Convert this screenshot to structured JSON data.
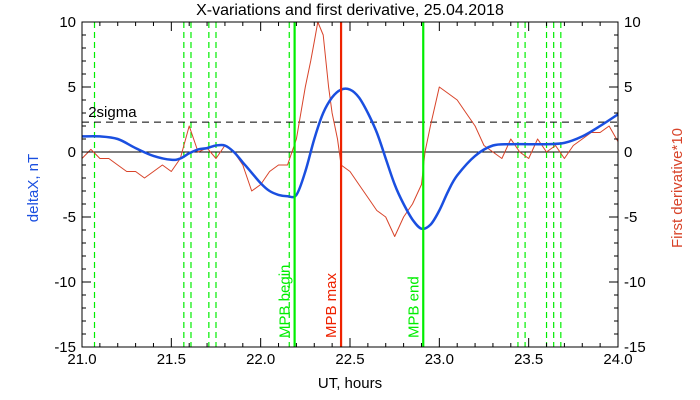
{
  "chart_data": {
    "type": "line",
    "title": "X-variations and first derivative, 25.04.2018",
    "xlabel": "UT, hours",
    "ylabel_left": "deltaX, nT",
    "ylabel_right": "First derivative*10",
    "xlim": [
      21.0,
      24.0
    ],
    "ylim": [
      -15,
      10
    ],
    "ylim_right": [
      -15,
      10
    ],
    "x_ticks": [
      21.0,
      21.5,
      22.0,
      22.5,
      23.0,
      23.5,
      24.0
    ],
    "x_tick_labels": [
      "21.0",
      "21.5",
      "22.0",
      "22.5",
      "23.0",
      "23.5",
      "24.0"
    ],
    "y_ticks": [
      -15,
      -10,
      -5,
      0,
      5,
      10
    ],
    "y_tick_labels": [
      "-15",
      "-10",
      "-5",
      "0",
      "5",
      "10"
    ],
    "grid": false,
    "legend": "none",
    "colors": {
      "deltaX": "#1a4fe0",
      "derivative": "#d8442a",
      "boundary": "#00ee00",
      "max": "#ee2200",
      "sigma": "#000000",
      "zero": "#000000"
    },
    "series": [
      {
        "key": "deltaX",
        "axis": "left",
        "x": [
          21.0,
          21.1,
          21.2,
          21.3,
          21.4,
          21.5,
          21.55,
          21.6,
          21.65,
          21.7,
          21.75,
          21.8,
          21.85,
          21.9,
          21.95,
          22.0,
          22.05,
          22.1,
          22.15,
          22.2,
          22.25,
          22.3,
          22.35,
          22.4,
          22.45,
          22.5,
          22.55,
          22.6,
          22.65,
          22.7,
          22.75,
          22.8,
          22.85,
          22.9,
          22.95,
          23.0,
          23.05,
          23.1,
          23.2,
          23.3,
          23.4,
          23.5,
          23.6,
          23.7,
          23.8,
          23.9,
          24.0
        ],
        "y": [
          1.2,
          1.2,
          1.0,
          0.3,
          -0.3,
          -0.6,
          -0.5,
          -0.1,
          0.2,
          0.3,
          0.5,
          0.5,
          0.0,
          -0.8,
          -1.6,
          -2.4,
          -3.0,
          -3.3,
          -3.4,
          -3.3,
          -1.5,
          1.0,
          3.0,
          4.2,
          4.8,
          4.8,
          4.2,
          3.0,
          1.5,
          -0.5,
          -2.5,
          -4.0,
          -5.2,
          -5.9,
          -5.6,
          -4.5,
          -3.0,
          -1.8,
          -0.3,
          0.5,
          0.6,
          0.6,
          0.6,
          0.7,
          1.2,
          2.0,
          2.9
        ]
      },
      {
        "key": "derivative",
        "axis": "right",
        "x": [
          21.0,
          21.05,
          21.1,
          21.15,
          21.2,
          21.25,
          21.3,
          21.35,
          21.4,
          21.45,
          21.5,
          21.55,
          21.6,
          21.65,
          21.7,
          21.75,
          21.8,
          21.85,
          21.9,
          21.95,
          22.0,
          22.05,
          22.1,
          22.15,
          22.2,
          22.25,
          22.28,
          22.3,
          22.32,
          22.35,
          22.38,
          22.4,
          22.43,
          22.45,
          22.5,
          22.55,
          22.6,
          22.65,
          22.7,
          22.75,
          22.8,
          22.85,
          22.9,
          22.92,
          22.95,
          23.0,
          23.05,
          23.1,
          23.15,
          23.2,
          23.25,
          23.3,
          23.35,
          23.4,
          23.45,
          23.5,
          23.55,
          23.6,
          23.65,
          23.7,
          23.75,
          23.8,
          23.85,
          23.9,
          23.95,
          24.0
        ],
        "y": [
          -0.5,
          0.2,
          -0.5,
          -0.5,
          -1.0,
          -1.5,
          -1.5,
          -2.0,
          -1.5,
          -1.0,
          -1.5,
          -0.5,
          2.0,
          0.0,
          0.3,
          -0.5,
          0.5,
          0.0,
          -1.0,
          -3.0,
          -2.5,
          -1.5,
          -1.0,
          -1.0,
          1.0,
          5.0,
          7.0,
          8.5,
          10.0,
          9.0,
          5.0,
          3.0,
          1.0,
          -1.0,
          -1.5,
          -2.5,
          -3.5,
          -4.5,
          -5.0,
          -6.5,
          -5.0,
          -4.0,
          -2.5,
          0.0,
          2.0,
          5.0,
          4.5,
          4.0,
          3.0,
          2.0,
          0.5,
          0.0,
          -0.5,
          1.0,
          0.0,
          -0.5,
          1.0,
          0.0,
          0.5,
          -0.5,
          0.5,
          1.0,
          1.5,
          1.5,
          2.0,
          0.8
        ]
      }
    ],
    "hlines": [
      {
        "key": "sigma",
        "y": 2.3,
        "style": "dashed",
        "label": "2sigma",
        "label_x": 21.17
      },
      {
        "key": "zero",
        "y": 0,
        "style": "solid"
      }
    ],
    "vlines": [
      {
        "x": 21.07,
        "style": "dashed"
      },
      {
        "x": 21.57,
        "style": "dashed"
      },
      {
        "x": 21.61,
        "style": "dashed"
      },
      {
        "x": 21.71,
        "style": "dashed"
      },
      {
        "x": 21.75,
        "style": "dashed"
      },
      {
        "x": 22.16,
        "style": "dashed"
      },
      {
        "x": 23.44,
        "style": "dashed"
      },
      {
        "x": 23.48,
        "style": "dashed"
      },
      {
        "x": 23.6,
        "style": "dashed"
      },
      {
        "x": 23.64,
        "style": "dashed"
      },
      {
        "x": 23.68,
        "style": "dashed"
      }
    ],
    "markers": [
      {
        "key": "boundary",
        "x": 22.19,
        "label": "MPB begin"
      },
      {
        "key": "max",
        "x": 22.45,
        "label": "MPB max"
      },
      {
        "key": "boundary",
        "x": 22.91,
        "label": "MPB end"
      }
    ]
  }
}
